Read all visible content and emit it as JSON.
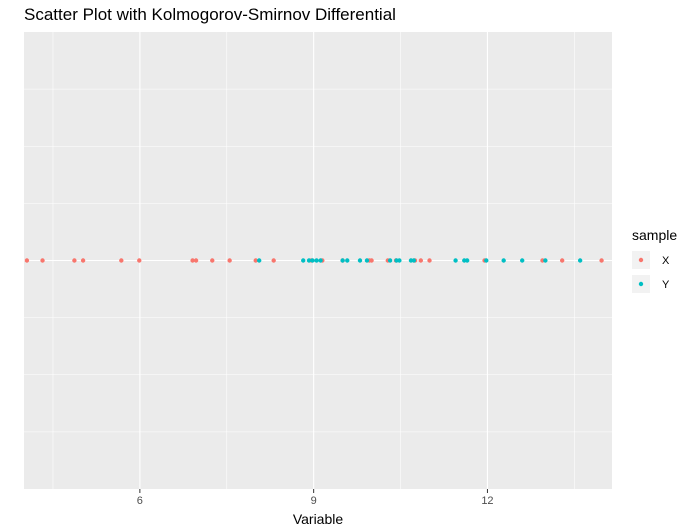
{
  "chart_data": {
    "type": "scatter",
    "title": "Scatter Plot with Kolmogorov-Smirnov Differential",
    "xlabel": "Variable",
    "ylabel": "",
    "xlim": [
      4.0,
      14.15
    ],
    "x_ticks": [
      6,
      9,
      12
    ],
    "x_tick_labels": [
      "6",
      "9",
      "12"
    ],
    "y_value": 0,
    "grid": true,
    "legend": {
      "title": "sample",
      "position": "right",
      "entries": [
        {
          "label": "X",
          "color": "#F8766D"
        },
        {
          "label": "Y",
          "color": "#00BFC4"
        }
      ]
    },
    "series": [
      {
        "name": "X",
        "color": "#F8766D",
        "x": [
          4.05,
          4.32,
          4.87,
          5.02,
          5.68,
          5.99,
          6.91,
          6.97,
          7.25,
          7.55,
          8.0,
          8.31,
          8.96,
          9.15,
          9.5,
          9.96,
          10.0,
          10.28,
          10.42,
          10.75,
          10.85,
          11.0,
          11.95,
          12.95,
          13.29,
          13.97
        ]
      },
      {
        "name": "Y",
        "color": "#00BFC4",
        "x": [
          8.06,
          8.82,
          8.92,
          8.98,
          9.05,
          9.12,
          9.5,
          9.58,
          9.8,
          9.92,
          10.32,
          10.43,
          10.48,
          10.68,
          10.73,
          11.45,
          11.6,
          11.65,
          11.98,
          12.28,
          12.6,
          13.0,
          13.6
        ]
      }
    ]
  }
}
